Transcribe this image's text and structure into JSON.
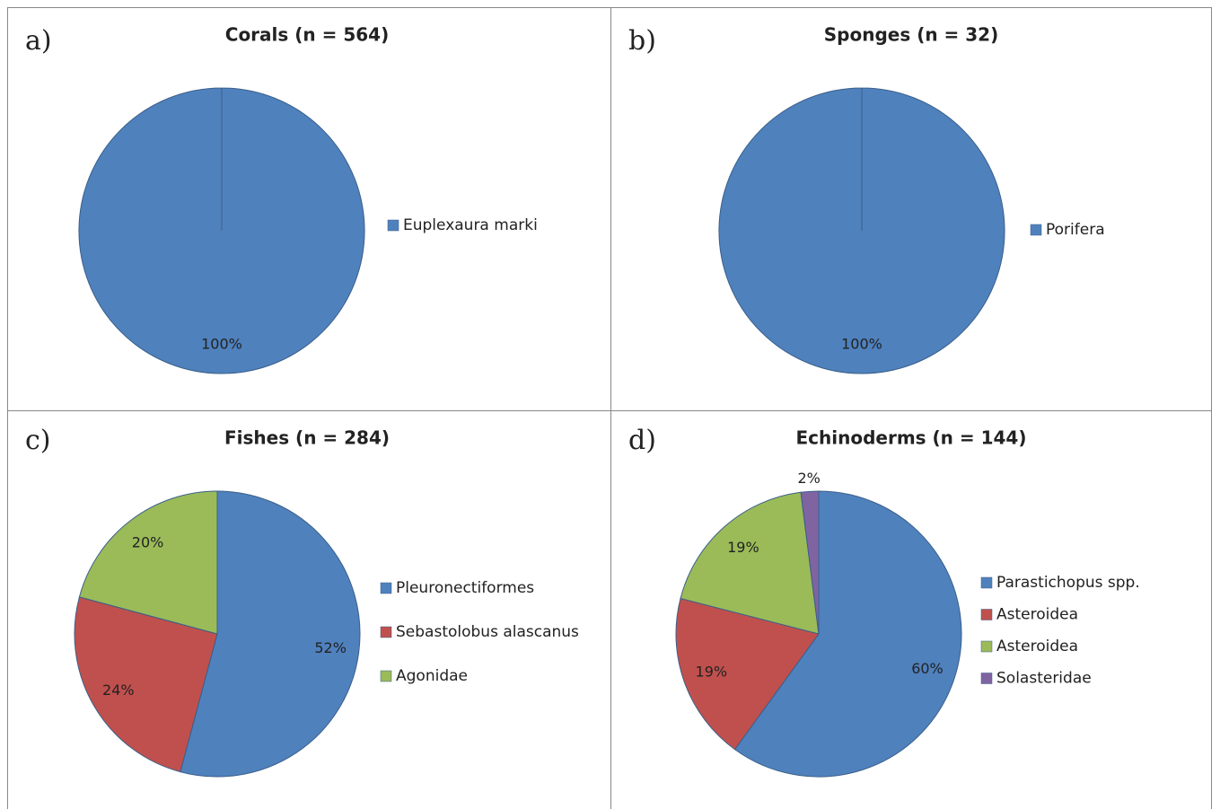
{
  "chart_data": [
    {
      "type": "pie",
      "label": "a)",
      "title": "Corals (n = 564)",
      "categories": [
        "Euplexaura marki"
      ],
      "values": [
        100
      ],
      "value_labels": [
        "100%"
      ],
      "colors": [
        "#4f81bd"
      ]
    },
    {
      "type": "pie",
      "label": "b)",
      "title": "Sponges (n = 32)",
      "categories": [
        "Porifera"
      ],
      "values": [
        100
      ],
      "value_labels": [
        "100%"
      ],
      "colors": [
        "#4f81bd"
      ]
    },
    {
      "type": "pie",
      "label": "c)",
      "title": "Fishes (n = 284)",
      "categories": [
        "Pleuronectiformes",
        "Sebastolobus alascanus",
        "Agonidae"
      ],
      "values": [
        52,
        24,
        20
      ],
      "value_labels": [
        "52%",
        "24%",
        "20%"
      ],
      "colors": [
        "#4f81bd",
        "#c0504d",
        "#9bbb59"
      ]
    },
    {
      "type": "pie",
      "label": "d)",
      "title": "Echinoderms (n = 144)",
      "categories": [
        "Parastichopus spp.",
        "Asteroidea",
        "Asteroidea",
        "Solasteridae"
      ],
      "values": [
        60,
        19,
        19,
        2
      ],
      "value_labels": [
        "60%",
        "19%",
        "19%",
        "2%"
      ],
      "colors": [
        "#4f81bd",
        "#c0504d",
        "#9bbb59",
        "#8064a2"
      ]
    }
  ]
}
